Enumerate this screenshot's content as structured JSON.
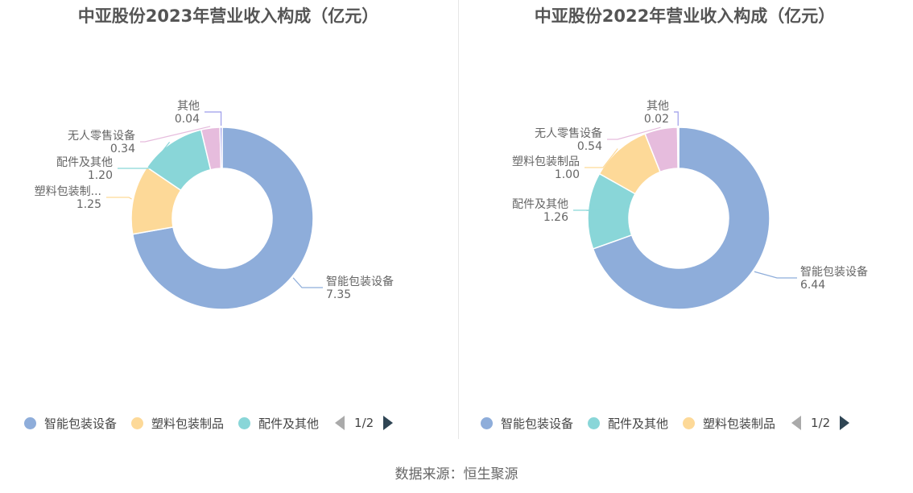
{
  "chart_data": [
    {
      "type": "pie",
      "variant": "donut",
      "title": "中亚股份2023年营业收入构成（亿元）",
      "slices": [
        {
          "name": "智能包装设备",
          "label_text": "智能包装设备",
          "value": 7.35,
          "value_text": "7.35",
          "color": "#8eadda"
        },
        {
          "name": "塑料包装制品",
          "label_text": "塑料包装制...",
          "value": 1.25,
          "value_text": "1.25",
          "color": "#fdd998"
        },
        {
          "name": "配件及其他",
          "label_text": "配件及其他",
          "value": 1.2,
          "value_text": "1.20",
          "color": "#89d6d8"
        },
        {
          "name": "无人零售设备",
          "label_text": "无人零售设备",
          "value": 0.34,
          "value_text": "0.34",
          "color": "#e6bcdd"
        },
        {
          "name": "其他",
          "label_text": "其他",
          "value": 0.04,
          "value_text": "0.04",
          "color": "#9c9cea"
        }
      ],
      "legend": {
        "items": [
          {
            "name": "智能包装设备",
            "color": "#8eadda"
          },
          {
            "name": "塑料包装制品",
            "color": "#fdd998"
          },
          {
            "name": "配件及其他",
            "color": "#89d6d8"
          }
        ],
        "page": "1/2",
        "placement": "bottom"
      }
    },
    {
      "type": "pie",
      "variant": "donut",
      "title": "中亚股份2022年营业收入构成（亿元）",
      "slices": [
        {
          "name": "智能包装设备",
          "label_text": "智能包装设备",
          "value": 6.44,
          "value_text": "6.44",
          "color": "#8eadda"
        },
        {
          "name": "配件及其他",
          "label_text": "配件及其他",
          "value": 1.26,
          "value_text": "1.26",
          "color": "#89d6d8"
        },
        {
          "name": "塑料包装制品",
          "label_text": "塑料包装制品",
          "value": 1.0,
          "value_text": "1.00",
          "color": "#fdd998"
        },
        {
          "name": "无人零售设备",
          "label_text": "无人零售设备",
          "value": 0.54,
          "value_text": "0.54",
          "color": "#e6bcdd"
        },
        {
          "name": "其他",
          "label_text": "其他",
          "value": 0.02,
          "value_text": "0.02",
          "color": "#9c9cea"
        }
      ],
      "legend": {
        "items": [
          {
            "name": "智能包装设备",
            "color": "#8eadda"
          },
          {
            "name": "配件及其他",
            "color": "#89d6d8"
          },
          {
            "name": "塑料包装制品",
            "color": "#fdd998"
          }
        ],
        "page": "1/2",
        "placement": "bottom"
      }
    }
  ],
  "footer": {
    "source": "数据来源：恒生聚源"
  }
}
